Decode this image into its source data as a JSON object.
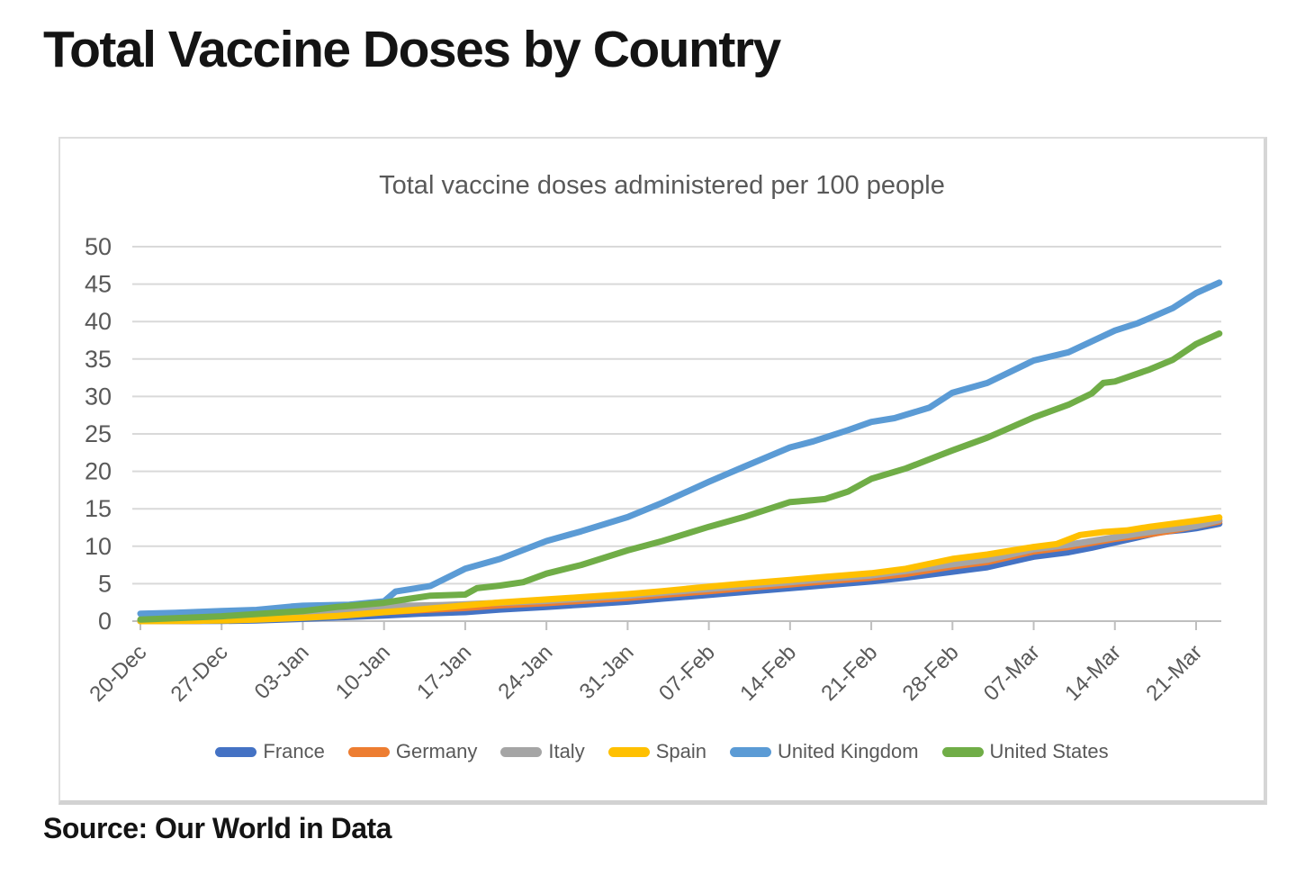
{
  "page": {
    "title": "Total Vaccine Doses by Country",
    "source": "Source: Our World in Data"
  },
  "theme": {
    "grid_color": "#D9D9D9",
    "axis_color": "#BFBFBF",
    "label_color": "#595959",
    "title_color": "#141414",
    "card_border": "#D9D9D9",
    "background": "#FFFFFF"
  },
  "chart_data": {
    "type": "line",
    "title": "Total vaccine doses administered per 100 people",
    "xlabel": "",
    "ylabel": "",
    "grid": true,
    "legend_position": "bottom",
    "x_axis": {
      "labels": [
        "20-Dec",
        "27-Dec",
        "03-Jan",
        "10-Jan",
        "17-Jan",
        "24-Jan",
        "31-Jan",
        "07-Feb",
        "14-Feb",
        "21-Feb",
        "28-Feb",
        "07-Mar",
        "14-Mar",
        "21-Mar"
      ],
      "label_days": [
        0,
        7,
        14,
        21,
        28,
        35,
        42,
        49,
        56,
        63,
        70,
        77,
        84,
        91
      ],
      "first_label": "20-Dec",
      "last_label": "21-Mar",
      "end_day": 93
    },
    "y_axis": {
      "min": 0,
      "max": 50,
      "step": 5,
      "ticks": [
        0,
        5,
        10,
        15,
        20,
        25,
        30,
        35,
        40,
        45,
        50
      ]
    },
    "series": [
      {
        "name": "France",
        "color": "#4472C4",
        "points": [
          [
            0,
            0
          ],
          [
            7,
            0.02
          ],
          [
            10,
            0.08
          ],
          [
            14,
            0.3
          ],
          [
            17,
            0.5
          ],
          [
            21,
            0.75
          ],
          [
            24,
            1.0
          ],
          [
            28,
            1.2
          ],
          [
            31,
            1.55
          ],
          [
            35,
            1.9
          ],
          [
            38,
            2.2
          ],
          [
            42,
            2.6
          ],
          [
            45,
            3.0
          ],
          [
            49,
            3.5
          ],
          [
            52,
            3.9
          ],
          [
            56,
            4.4
          ],
          [
            59,
            4.8
          ],
          [
            63,
            5.3
          ],
          [
            66,
            5.8
          ],
          [
            70,
            6.6
          ],
          [
            73,
            7.2
          ],
          [
            77,
            8.6
          ],
          [
            80,
            9.2
          ],
          [
            82,
            9.8
          ],
          [
            84,
            10.5
          ],
          [
            86,
            11.2
          ],
          [
            88,
            11.9
          ],
          [
            90,
            12.2
          ],
          [
            91,
            12.4
          ],
          [
            93,
            13.0
          ]
        ]
      },
      {
        "name": "Germany",
        "color": "#ED7D31",
        "points": [
          [
            0,
            0
          ],
          [
            5,
            0.02
          ],
          [
            7,
            0.2
          ],
          [
            10,
            0.4
          ],
          [
            14,
            0.7
          ],
          [
            17,
            0.95
          ],
          [
            21,
            1.2
          ],
          [
            24,
            1.45
          ],
          [
            28,
            1.75
          ],
          [
            31,
            2.1
          ],
          [
            35,
            2.4
          ],
          [
            38,
            2.7
          ],
          [
            42,
            3.1
          ],
          [
            45,
            3.5
          ],
          [
            49,
            4.0
          ],
          [
            52,
            4.4
          ],
          [
            56,
            4.9
          ],
          [
            59,
            5.3
          ],
          [
            63,
            5.8
          ],
          [
            66,
            6.3
          ],
          [
            70,
            7.3
          ],
          [
            73,
            7.9
          ],
          [
            77,
            9.3
          ],
          [
            80,
            9.9
          ],
          [
            84,
            11.0
          ],
          [
            87,
            11.6
          ],
          [
            89,
            12.1
          ],
          [
            91,
            12.7
          ],
          [
            93,
            13.3
          ]
        ]
      },
      {
        "name": "Italy",
        "color": "#A5A5A5",
        "points": [
          [
            0,
            0
          ],
          [
            5,
            0.02
          ],
          [
            7,
            0.18
          ],
          [
            10,
            0.55
          ],
          [
            12,
            0.8
          ],
          [
            14,
            1.05
          ],
          [
            17,
            1.45
          ],
          [
            19,
            1.7
          ],
          [
            21,
            1.9
          ],
          [
            23,
            2.05
          ],
          [
            26,
            2.15
          ],
          [
            28,
            2.25
          ],
          [
            31,
            2.45
          ],
          [
            35,
            2.7
          ],
          [
            38,
            3.0
          ],
          [
            42,
            3.4
          ],
          [
            45,
            3.8
          ],
          [
            49,
            4.3
          ],
          [
            52,
            4.7
          ],
          [
            56,
            5.2
          ],
          [
            59,
            5.6
          ],
          [
            63,
            6.1
          ],
          [
            66,
            6.7
          ],
          [
            70,
            7.6
          ],
          [
            73,
            8.2
          ],
          [
            77,
            9.6
          ],
          [
            80,
            10.2
          ],
          [
            82,
            10.7
          ],
          [
            84,
            11.2
          ],
          [
            86,
            11.7
          ],
          [
            88,
            12.1
          ],
          [
            90,
            12.5
          ],
          [
            91,
            12.7
          ],
          [
            93,
            13.5
          ]
        ]
      },
      {
        "name": "Spain",
        "color": "#FFC000",
        "points": [
          [
            0,
            0
          ],
          [
            7,
            0.08
          ],
          [
            10,
            0.2
          ],
          [
            14,
            0.45
          ],
          [
            17,
            0.7
          ],
          [
            19,
            0.95
          ],
          [
            21,
            1.2
          ],
          [
            24,
            1.55
          ],
          [
            28,
            2.1
          ],
          [
            31,
            2.5
          ],
          [
            35,
            2.9
          ],
          [
            38,
            3.2
          ],
          [
            42,
            3.6
          ],
          [
            45,
            4.0
          ],
          [
            49,
            4.6
          ],
          [
            52,
            5.0
          ],
          [
            56,
            5.5
          ],
          [
            59,
            5.9
          ],
          [
            63,
            6.4
          ],
          [
            66,
            7.0
          ],
          [
            70,
            8.3
          ],
          [
            73,
            8.9
          ],
          [
            77,
            9.9
          ],
          [
            79,
            10.3
          ],
          [
            81,
            11.5
          ],
          [
            83,
            11.9
          ],
          [
            85,
            12.1
          ],
          [
            87,
            12.6
          ],
          [
            89,
            13.0
          ],
          [
            91,
            13.4
          ],
          [
            93,
            13.85
          ]
        ]
      },
      {
        "name": "United Kingdom",
        "color": "#5B9BD5",
        "points": [
          [
            0,
            1.0
          ],
          [
            3,
            1.1
          ],
          [
            7,
            1.35
          ],
          [
            10,
            1.5
          ],
          [
            13,
            1.95
          ],
          [
            14,
            2.05
          ],
          [
            18,
            2.2
          ],
          [
            21,
            2.65
          ],
          [
            22,
            3.95
          ],
          [
            23,
            4.2
          ],
          [
            25,
            4.7
          ],
          [
            28,
            7.0
          ],
          [
            31,
            8.3
          ],
          [
            35,
            10.7
          ],
          [
            38,
            12.0
          ],
          [
            42,
            13.9
          ],
          [
            45,
            15.8
          ],
          [
            49,
            18.6
          ],
          [
            52,
            20.6
          ],
          [
            56,
            23.2
          ],
          [
            58,
            24.0
          ],
          [
            61,
            25.5
          ],
          [
            63,
            26.6
          ],
          [
            65,
            27.1
          ],
          [
            68,
            28.5
          ],
          [
            70,
            30.5
          ],
          [
            73,
            31.8
          ],
          [
            77,
            34.8
          ],
          [
            80,
            35.9
          ],
          [
            84,
            38.8
          ],
          [
            86,
            39.8
          ],
          [
            89,
            41.8
          ],
          [
            91,
            43.8
          ],
          [
            93,
            45.2
          ]
        ]
      },
      {
        "name": "United States",
        "color": "#70AD47",
        "points": [
          [
            0,
            0.2
          ],
          [
            3,
            0.4
          ],
          [
            7,
            0.65
          ],
          [
            10,
            0.95
          ],
          [
            14,
            1.35
          ],
          [
            17,
            1.9
          ],
          [
            21,
            2.45
          ],
          [
            23,
            2.95
          ],
          [
            25,
            3.4
          ],
          [
            28,
            3.55
          ],
          [
            29,
            4.4
          ],
          [
            31,
            4.75
          ],
          [
            33,
            5.2
          ],
          [
            35,
            6.35
          ],
          [
            38,
            7.5
          ],
          [
            42,
            9.45
          ],
          [
            45,
            10.7
          ],
          [
            49,
            12.6
          ],
          [
            52,
            13.9
          ],
          [
            56,
            15.9
          ],
          [
            58,
            16.15
          ],
          [
            59,
            16.3
          ],
          [
            61,
            17.3
          ],
          [
            63,
            19.0
          ],
          [
            66,
            20.4
          ],
          [
            70,
            22.8
          ],
          [
            73,
            24.5
          ],
          [
            77,
            27.2
          ],
          [
            80,
            28.9
          ],
          [
            82,
            30.4
          ],
          [
            83,
            31.8
          ],
          [
            84,
            32.0
          ],
          [
            87,
            33.6
          ],
          [
            89,
            34.9
          ],
          [
            91,
            37.0
          ],
          [
            93,
            38.4
          ]
        ]
      }
    ]
  }
}
